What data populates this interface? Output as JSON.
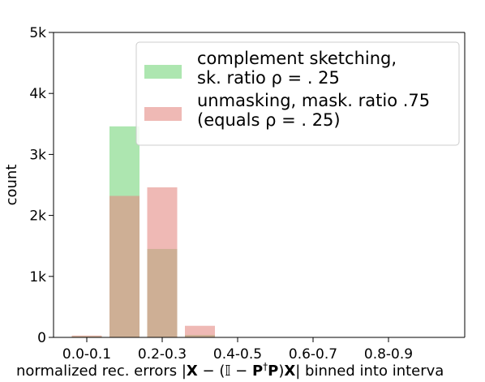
{
  "chart_data": {
    "type": "bar",
    "title": "",
    "ylabel": "count",
    "xlabel": "normalized rec. errors |X − (𝕀 − P†P)X| binned into intervals",
    "xlabel_parts": [
      "normalized rec. errors |",
      "X",
      " − (𝕀 − ",
      "P",
      "†",
      "P",
      ")",
      "X",
      "| binned into interva"
    ],
    "categories": [
      "0.0-0.1",
      "0.1-0.2",
      "0.2-0.3",
      "0.3-0.4",
      "0.4-0.5",
      "0.5-0.6",
      "0.6-0.7",
      "0.7-0.8",
      "0.8-0.9",
      "0.9-1.0"
    ],
    "x_tick_labels": [
      "0.0-0.1",
      "0.2-0.3",
      "0.4-0.5",
      "0.6-0.7",
      "0.8-0.9"
    ],
    "x_tick_indices": [
      0,
      2,
      4,
      6,
      8
    ],
    "y_ticks": [
      0,
      1000,
      2000,
      3000,
      4000,
      5000
    ],
    "y_tick_labels": [
      "0",
      "1k",
      "2k",
      "3k",
      "4k",
      "5k"
    ],
    "ylim": [
      0,
      5000
    ],
    "grid": false,
    "legend_position": "top-right",
    "series": [
      {
        "name": "complement sketching, sk. ratio ρ = .25",
        "legend_lines": [
          "complement sketching,",
          "sk. ratio ρ = . 25"
        ],
        "color": "#77d67c",
        "opacity": 0.6,
        "values": [
          20,
          3460,
          1450,
          40,
          0,
          0,
          0,
          0,
          0,
          0
        ]
      },
      {
        "name": "unmasking, mask. ratio .75 (equals ρ = .25)",
        "legend_lines": [
          "unmasking, mask. ratio .75",
          "(equals ρ = . 25)"
        ],
        "color": "#e58a84",
        "opacity": 0.6,
        "values": [
          30,
          2320,
          2460,
          190,
          0,
          0,
          0,
          0,
          0,
          0
        ]
      }
    ]
  }
}
